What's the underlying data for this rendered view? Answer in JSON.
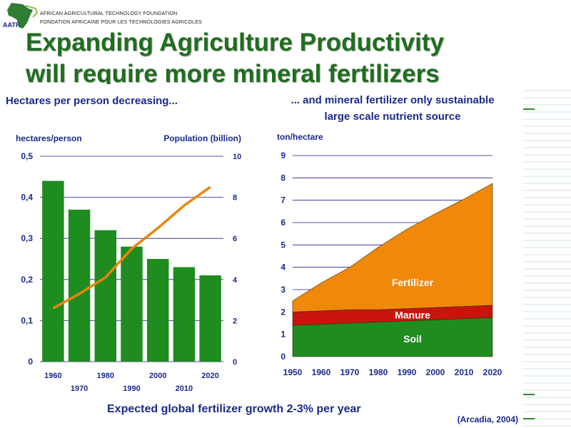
{
  "logo": {
    "abbr": "AATF",
    "line1": "AFRICAN AGRICULTURAL TECHNOLOGY FOUNDATION",
    "line2": "FONDATION AFRICAINE POUR LES TECHNOLOGIES AGRICOLES"
  },
  "slide": {
    "title_line1": "Expanding Agriculture Productivity",
    "title_line2": "will require more mineral fertilizers",
    "footer": "Expected global fertilizer growth 2-3% per year",
    "citation": "(Arcadia, 2004)"
  },
  "colors": {
    "title": "#1f6e1f",
    "bar": "#1e8c1e",
    "population_line": "#e8860c",
    "fertilizer": "#f0890a",
    "manure": "#c8140c",
    "soil": "#1e8c1e",
    "heading": "#1a2a8c",
    "axis": "#00007a"
  },
  "chart_data": [
    {
      "type": "bar",
      "title": "Hectares per person decreasing...",
      "ylabel": "hectares/person",
      "y2label": "Population (billion)",
      "categories": [
        "1960",
        "1970",
        "1980",
        "1990",
        "2000",
        "2010",
        "2020"
      ],
      "values": [
        0.44,
        0.37,
        0.32,
        0.28,
        0.25,
        0.23,
        0.21
      ],
      "ylim": [
        0,
        0.5
      ],
      "y_ticks": [
        "0",
        "0,1",
        "0,2",
        "0,3",
        "0,4",
        "0,5"
      ],
      "y2lim": [
        0,
        10
      ],
      "y2_ticks": [
        "0",
        "2",
        "4",
        "6",
        "8",
        "10"
      ],
      "line_series": {
        "x": [
          "1960",
          "1970",
          "1980",
          "1990",
          "2000",
          "2010",
          "2020"
        ],
        "values": [
          2.6,
          3.3,
          4.1,
          5.5,
          6.5,
          7.6,
          8.5
        ]
      },
      "grid": true
    },
    {
      "type": "area",
      "title": "... and mineral fertilizer only sustainable large scale nutrient source",
      "ylabel": "ton/hectare",
      "x": [
        1950,
        1960,
        1970,
        1980,
        1990,
        2000,
        2010,
        2020
      ],
      "x_ticks": [
        "1950",
        "1960",
        "1970",
        "1980",
        "1990",
        "2000",
        "2010",
        "2020"
      ],
      "ylim": [
        0,
        9
      ],
      "y_ticks": [
        "0",
        "1",
        "2",
        "3",
        "4",
        "5",
        "6",
        "7",
        "8",
        "9"
      ],
      "series": [
        {
          "name": "Soil",
          "values": [
            1.4,
            1.45,
            1.5,
            1.55,
            1.6,
            1.65,
            1.7,
            1.75
          ]
        },
        {
          "name": "Manure",
          "values": [
            0.6,
            0.6,
            0.6,
            0.55,
            0.55,
            0.55,
            0.55,
            0.55
          ]
        },
        {
          "name": "Fertilizer",
          "values": [
            0.5,
            1.25,
            1.9,
            2.8,
            3.55,
            4.2,
            4.8,
            5.45
          ]
        }
      ],
      "stacked": true,
      "grid": true
    }
  ]
}
